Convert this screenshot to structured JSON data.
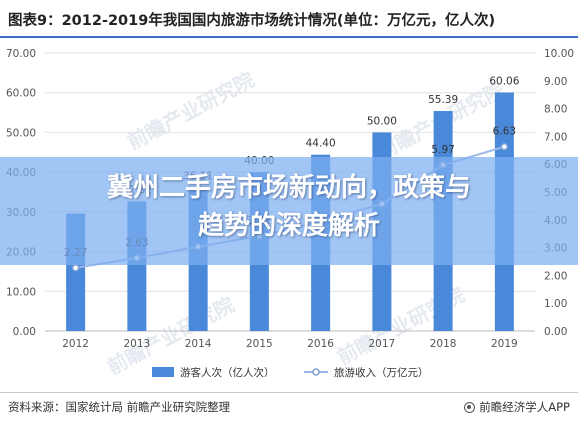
{
  "title": "图表9：2012-2019年我国国内旅游市场统计情况(单位：万亿元，亿人次)",
  "banner": {
    "line1": "冀州二手房市场新动向，政策与",
    "line2": "趋势的深度解析",
    "color": "#7dafef"
  },
  "watermark": "前瞻产业研究院",
  "footer": {
    "source": "资料来源：国家统计局 前瞻产业研究院整理",
    "brand": "前瞻经济学人APP"
  },
  "chart_data": {
    "type": "bar",
    "categories": [
      "2012",
      "2013",
      "2014",
      "2015",
      "2016",
      "2017",
      "2018",
      "2019"
    ],
    "series": [
      {
        "name": "游客人次（亿人次）",
        "kind": "bar",
        "axis": "left",
        "color": "#4a88d9",
        "values": [
          29.57,
          32.62,
          36.11,
          40.0,
          44.4,
          50.0,
          55.39,
          60.06
        ],
        "labels": [
          "",
          "32.62",
          "36.11",
          "40.00",
          "44.40",
          "50.00",
          "55.39",
          "60.06"
        ]
      },
      {
        "name": "旅游收入（万亿元）",
        "kind": "line",
        "axis": "right",
        "color": "#9ab8e8",
        "values": [
          2.27,
          2.63,
          3.03,
          3.42,
          3.94,
          4.57,
          5.97,
          6.63
        ],
        "labels": [
          "2.27",
          "2.63",
          "",
          "3.42",
          "",
          "",
          "5.97",
          "6.63"
        ]
      }
    ],
    "y_left": {
      "ticks": [
        "0.00",
        "10.00",
        "20.00",
        "30.00",
        "40.00",
        "50.00",
        "60.00",
        "70.00"
      ],
      "range": [
        0,
        70
      ]
    },
    "y_right": {
      "ticks": [
        "0.00",
        "1.00",
        "2.00",
        "3.00",
        "4.00",
        "5.00",
        "6.00",
        "7.00",
        "8.00",
        "9.00",
        "10.00"
      ],
      "range": [
        0,
        10
      ]
    },
    "grid": true,
    "legend_position": "bottom"
  }
}
